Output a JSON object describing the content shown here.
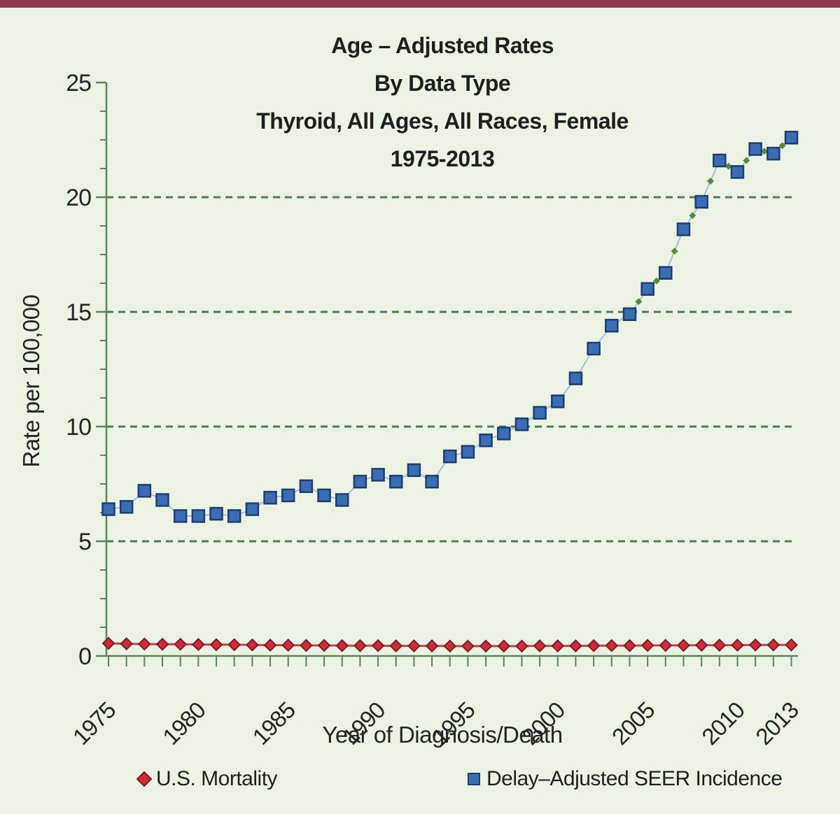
{
  "page": {
    "top_bar_color": "#8e3a4d",
    "background_color": "#edf3e4"
  },
  "title": {
    "line1": "Age – Adjusted Rates",
    "line2": "By Data Type",
    "line3": "Thyroid, All Ages, All Races, Female",
    "line4": "1975-2013"
  },
  "legend": {
    "items": [
      {
        "label": "U.S. Mortality",
        "marker": "red-diamond",
        "color": "#d32a38"
      },
      {
        "label": "Delay–Adjusted SEER Incidence",
        "marker": "blue-square",
        "color": "#3a6db3"
      }
    ]
  },
  "chart_data": {
    "type": "line",
    "title": "Age – Adjusted Rates By Data Type, Thyroid, All Ages, All Races, Female, 1975-2013",
    "xlabel": "Year of Diagnosis/Death",
    "ylabel": "Rate per 100,000",
    "ylim": [
      0,
      25
    ],
    "yticks": [
      0,
      5,
      10,
      15,
      20,
      25
    ],
    "y_minor_tick_step": 1.25,
    "grid_y_dashed": [
      5,
      10,
      15,
      20
    ],
    "x": [
      1975,
      1976,
      1977,
      1978,
      1979,
      1980,
      1981,
      1982,
      1983,
      1984,
      1985,
      1986,
      1987,
      1988,
      1989,
      1990,
      1991,
      1992,
      1993,
      1994,
      1995,
      1996,
      1997,
      1998,
      1999,
      2000,
      2001,
      2002,
      2003,
      2004,
      2005,
      2006,
      2007,
      2008,
      2009,
      2010,
      2011,
      2012,
      2013
    ],
    "xtick_labels": [
      "1975",
      "1980",
      "1985",
      "1990",
      "1995",
      "2000",
      "2005",
      "2010",
      "2013"
    ],
    "series": [
      {
        "name": "U.S. Mortality",
        "marker": "diamond",
        "marker_color": "#d32a38",
        "marker_edge_color": "#71202b",
        "line_color": "#c4414f",
        "values": [
          0.55,
          0.53,
          0.52,
          0.51,
          0.51,
          0.5,
          0.49,
          0.49,
          0.48,
          0.47,
          0.47,
          0.46,
          0.46,
          0.45,
          0.45,
          0.45,
          0.44,
          0.44,
          0.44,
          0.43,
          0.43,
          0.43,
          0.43,
          0.43,
          0.44,
          0.44,
          0.44,
          0.45,
          0.45,
          0.45,
          0.46,
          0.46,
          0.46,
          0.47,
          0.47,
          0.47,
          0.48,
          0.48,
          0.48
        ]
      },
      {
        "name": "Delay–Adjusted SEER Incidence",
        "marker": "square",
        "marker_color": "#3a6db3",
        "marker_edge_color": "#1e3f6d",
        "line_color": "#9fb9d4",
        "values": [
          6.4,
          6.5,
          7.2,
          6.8,
          6.1,
          6.1,
          6.2,
          6.1,
          6.4,
          6.9,
          7.0,
          7.4,
          7.0,
          6.8,
          7.6,
          7.9,
          7.6,
          8.1,
          7.6,
          8.7,
          8.9,
          9.4,
          9.7,
          10.1,
          10.6,
          11.1,
          12.1,
          13.4,
          14.4,
          14.9,
          16.0,
          16.7,
          18.6,
          19.8,
          21.6,
          21.1,
          22.1,
          21.9,
          22.6
        ]
      }
    ],
    "trend_marker": {
      "color": "#55893f",
      "from_year": 2004,
      "note": "small green diamonds on incidence trend line"
    },
    "axis_color": "#5b835c",
    "gridline_color": "#4c7b50",
    "legend_position": "bottom",
    "grid": "dashed horizontal at 5,10,15,20"
  }
}
